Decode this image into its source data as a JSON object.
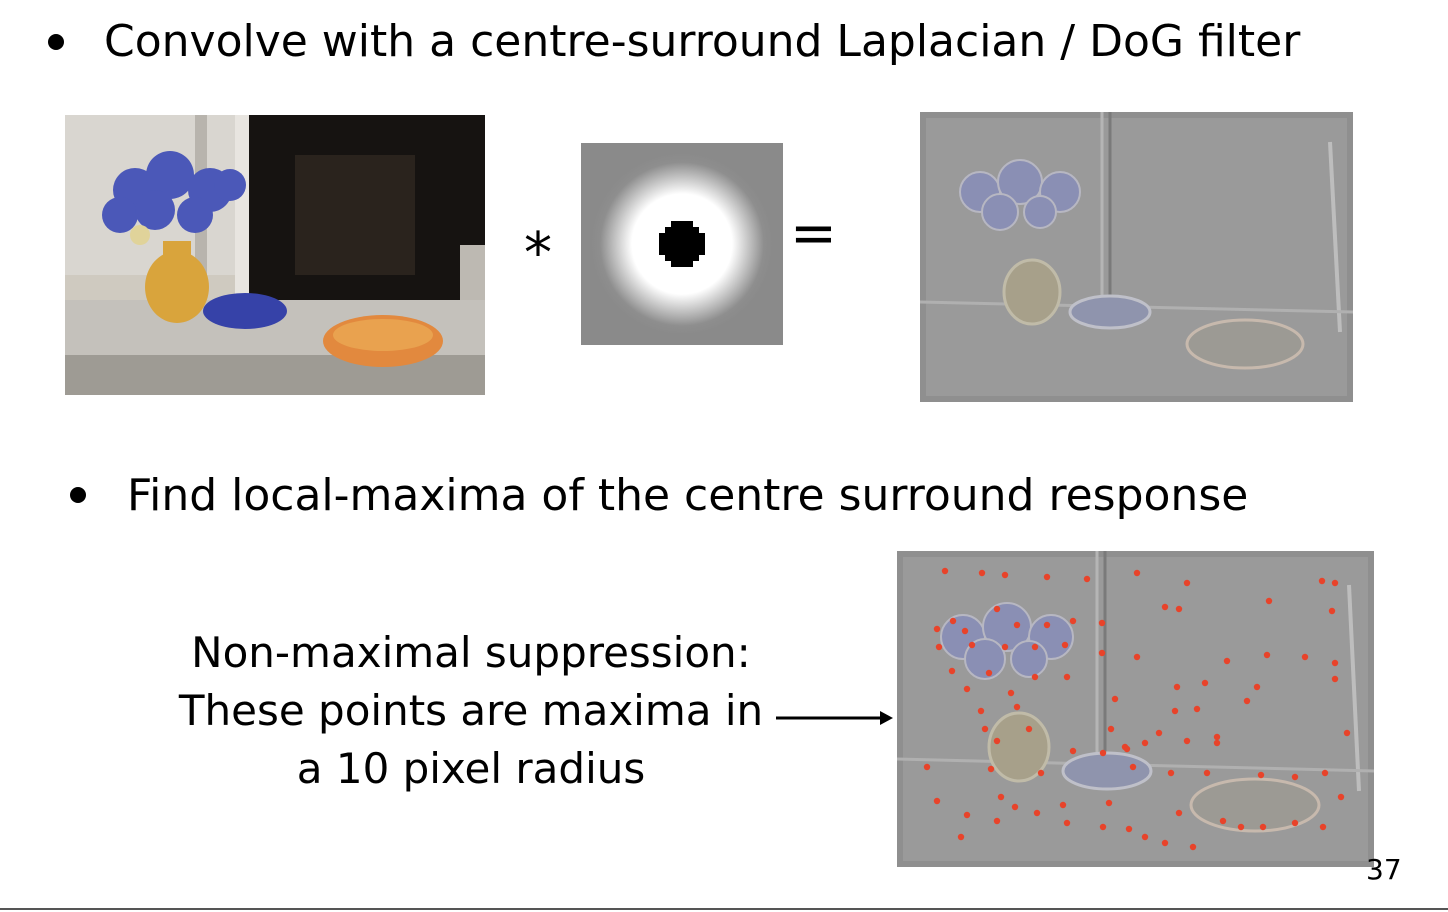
{
  "slide": {
    "bullet1": "Convolve with a centre-surround Laplacian / DoG filter",
    "bullet2": "Find local-maxima of the centre surround response",
    "operator_convolve": "*",
    "operator_equals": "=",
    "caption_lines": [
      "Non-maximal suppression:",
      "These points are maxima in",
      "a 10 pixel radius"
    ],
    "page_number": "37"
  },
  "images": {
    "original": "photo-window-vase-bowls",
    "kernel": "dog-filter-kernel",
    "response": "filter-response-image",
    "maxima": "filter-response-with-maxima-points"
  },
  "colors": {
    "maxima_points": "#e8432a",
    "kernel_background": "#8a8a8a"
  }
}
